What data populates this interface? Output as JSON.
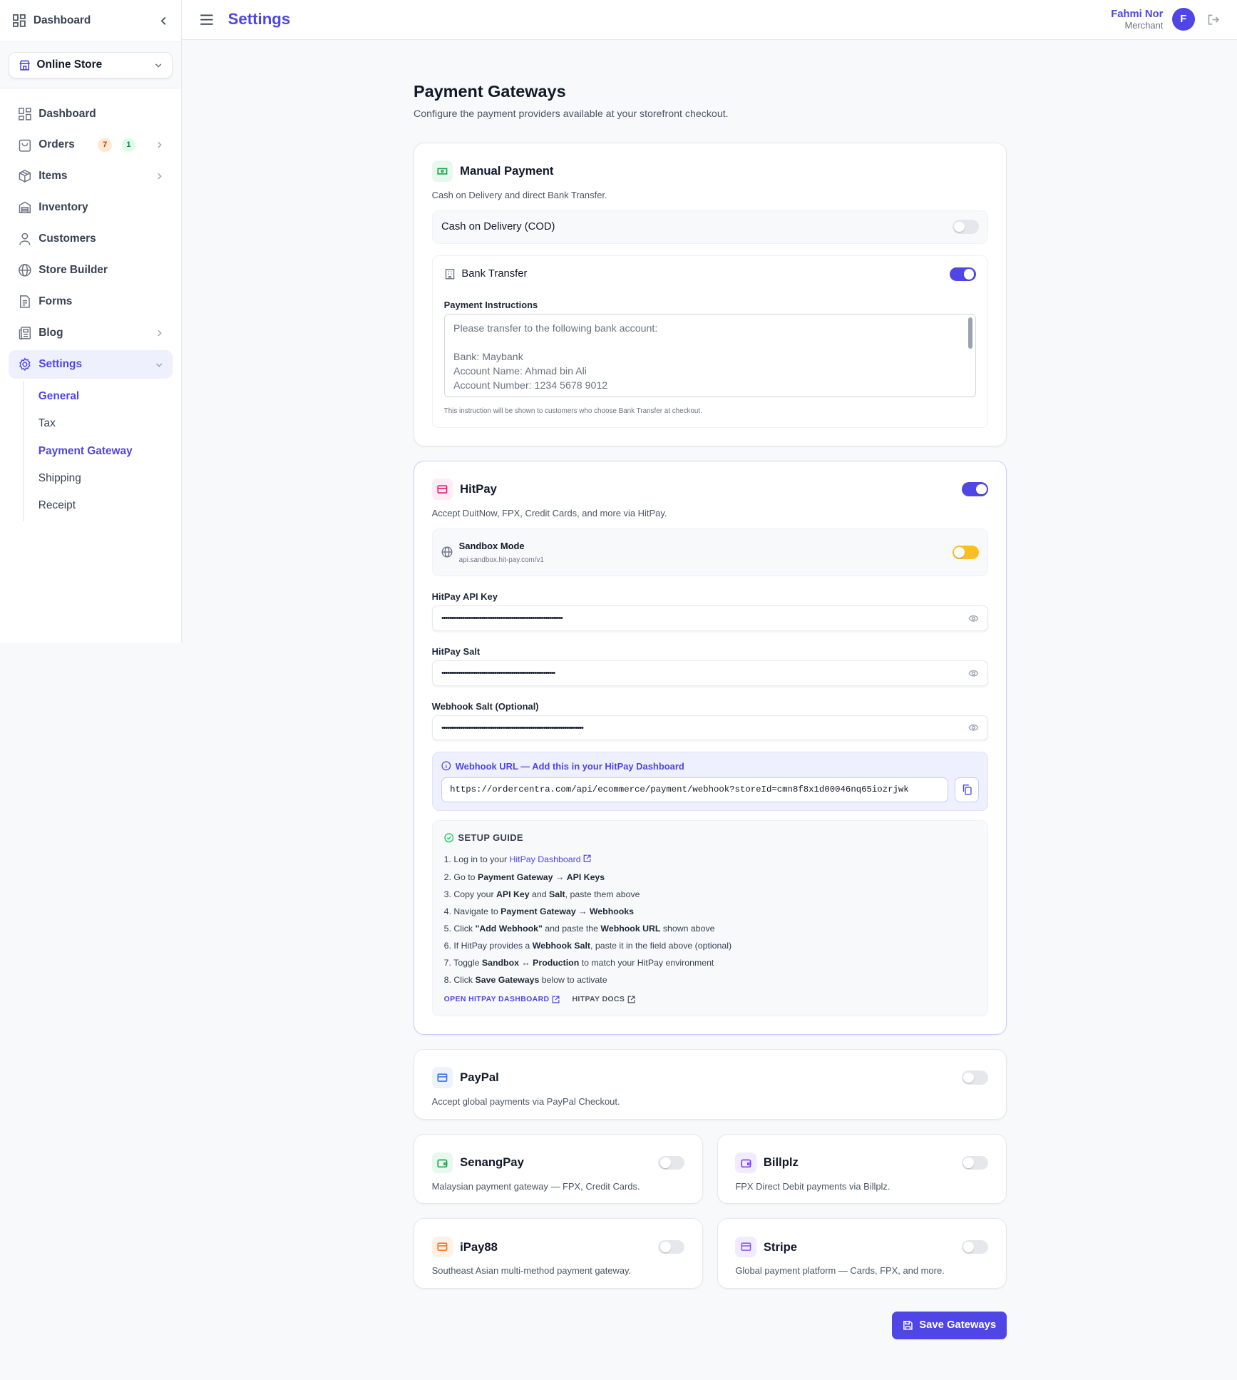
{
  "sidebar": {
    "top_label": "Dashboard",
    "store": "Online Store",
    "items": [
      {
        "label": "Dashboard",
        "icon": "grid-icon"
      },
      {
        "label": "Orders",
        "icon": "shopping-bag-icon",
        "badges": [
          "7",
          "1"
        ],
        "chevron": true
      },
      {
        "label": "Items",
        "icon": "package-icon",
        "chevron": true
      },
      {
        "label": "Inventory",
        "icon": "warehouse-icon"
      },
      {
        "label": "Customers",
        "icon": "user-icon"
      },
      {
        "label": "Store Builder",
        "icon": "globe-icon"
      },
      {
        "label": "Forms",
        "icon": "file-icon"
      },
      {
        "label": "Blog",
        "icon": "newspaper-icon",
        "chevron": true
      },
      {
        "label": "Settings",
        "icon": "gear-icon",
        "active": true,
        "expanded": true
      }
    ],
    "settings_sub": [
      "General",
      "Tax",
      "Payment Gateway",
      "Shipping",
      "Receipt"
    ]
  },
  "header": {
    "title": "Settings",
    "user_name": "Fahmi Nor",
    "user_role": "Merchant",
    "avatar_initial": "F"
  },
  "page": {
    "title": "Payment Gateways",
    "description": "Configure the payment providers available at your storefront checkout."
  },
  "manual": {
    "title": "Manual Payment",
    "description": "Cash on Delivery and direct Bank Transfer.",
    "cod_label": "Cash on Delivery (COD)",
    "cod_enabled": false,
    "bank_label": "Bank Transfer",
    "bank_enabled": true,
    "instructions_label": "Payment Instructions",
    "instructions": "Please transfer to the following bank account:\n\nBank: Maybank\nAccount Name: Ahmad bin Ali\nAccount Number: 1234 5678 9012",
    "instructions_note": "This instruction will be shown to customers who choose Bank Transfer at checkout."
  },
  "hitpay": {
    "title": "HitPay",
    "enabled": true,
    "description": "Accept DuitNow, FPX, Credit Cards, and more via HitPay.",
    "sandbox_label": "Sandbox Mode",
    "sandbox_url": "api.sandbox.hit-pay.com/v1",
    "sandbox_enabled": true,
    "api_key_label": "HitPay API Key",
    "api_key_value": "••••••••••••••••••••••••••••••••••••••••••••••••••••••••••••••••",
    "salt_label": "HitPay Salt",
    "salt_value": "••••••••••••••••••••••••••••••••••••••••••••••••••••••••••••",
    "webhook_salt_label": "Webhook Salt (Optional)",
    "webhook_salt_value": "•••••••••••••••••••••••••••••••••••••••••••••••••••••••••••••••••••••••••••",
    "webhook_heading": "Webhook URL — Add this in your HitPay Dashboard",
    "webhook_url": "https://ordercentra.com/api/ecommerce/payment/webhook?storeId=cmn8f8x1d00046nq65iozrjwk",
    "guide_title": "SETUP GUIDE",
    "guide_steps": [
      [
        {
          "t": "1. Log in to your "
        },
        {
          "t": "HitPay Dashboard",
          "link": true
        }
      ],
      [
        {
          "t": "2. Go to "
        },
        {
          "t": "Payment Gateway",
          "b": true
        },
        {
          "t": " → "
        },
        {
          "t": "API Keys",
          "b": true
        }
      ],
      [
        {
          "t": "3. Copy your "
        },
        {
          "t": "API Key",
          "b": true
        },
        {
          "t": " and "
        },
        {
          "t": "Salt",
          "b": true
        },
        {
          "t": ", paste them above"
        }
      ],
      [
        {
          "t": "4. Navigate to "
        },
        {
          "t": "Payment Gateway",
          "b": true
        },
        {
          "t": " → "
        },
        {
          "t": "Webhooks",
          "b": true
        }
      ],
      [
        {
          "t": "5. Click "
        },
        {
          "t": "\"Add Webhook\"",
          "b": true
        },
        {
          "t": " and paste the "
        },
        {
          "t": "Webhook URL",
          "b": true
        },
        {
          "t": " shown above"
        }
      ],
      [
        {
          "t": "6. If HitPay provides a "
        },
        {
          "t": "Webhook Salt",
          "b": true
        },
        {
          "t": ", paste it in the field above (optional)"
        }
      ],
      [
        {
          "t": "7. Toggle "
        },
        {
          "t": "Sandbox",
          "b": true
        },
        {
          "t": " ↔ "
        },
        {
          "t": "Production",
          "b": true
        },
        {
          "t": " to match your HitPay environment"
        }
      ],
      [
        {
          "t": "8. Click "
        },
        {
          "t": "Save Gateways",
          "b": true
        },
        {
          "t": " below to activate"
        }
      ]
    ],
    "open_dashboard_link": "OPEN HITPAY DASHBOARD",
    "docs_link": "HITPAY DOCS"
  },
  "paypal": {
    "title": "PayPal",
    "description": "Accept global payments via PayPal Checkout.",
    "enabled": false
  },
  "gateways": [
    {
      "title": "SenangPay",
      "description": "Malaysian payment gateway — FPX, Credit Cards.",
      "enabled": false,
      "color": "#16a34a",
      "bg": "#e8f8ee"
    },
    {
      "title": "Billplz",
      "description": "FPX Direct Debit payments via Billplz.",
      "enabled": false,
      "color": "#7c3aed",
      "bg": "#f1ecfd"
    },
    {
      "title": "iPay88",
      "description": "Southeast Asian multi-method payment gateway.",
      "enabled": false,
      "color": "#f97316",
      "bg": "#fef1e7"
    },
    {
      "title": "Stripe",
      "description": "Global payment platform — Cards, FPX, and more.",
      "enabled": false,
      "color": "#8b5cf6",
      "bg": "#f1ecfd"
    }
  ],
  "save_label": "Save Gateways",
  "colors": {
    "accent": "#4f46e5",
    "sandbox": "#fbbf24"
  }
}
